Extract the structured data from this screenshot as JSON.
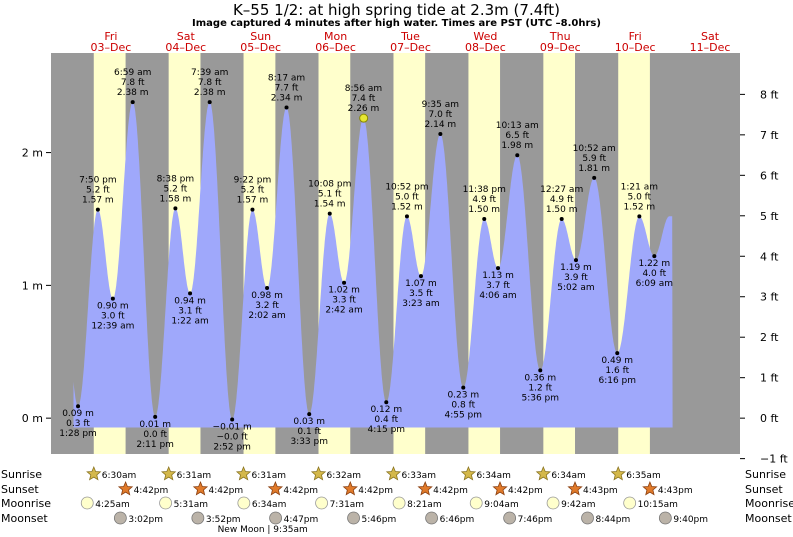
{
  "title": "K–55 1/2: at high  spring tide at 2.3m (7.4ft)",
  "subtitle": "Image captured 4 minutes after high water. Times are PST (UTC –8.0hrs)",
  "colors": {
    "night": "#999999",
    "day": "#ffffcc",
    "tide": "#9fa8fb",
    "date_label": "#cc0000",
    "current_marker": "#e6e632"
  },
  "chart_data": {
    "type": "area",
    "ylabel_left_unit": "m",
    "ylabel_right_unit": "ft",
    "left_ticks": [
      "0 m",
      "1 m",
      "2 m"
    ],
    "right_ticks": [
      "−1 ft",
      "0 ft",
      "1 ft",
      "2 ft",
      "3 ft",
      "4 ft",
      "5 ft",
      "6 ft",
      "7 ft",
      "8 ft"
    ],
    "ylim_m": [
      -0.27,
      2.75
    ],
    "x_range_days": [
      2.7,
      11.9
    ],
    "days": [
      {
        "day": "Fri",
        "date": "03–Dec"
      },
      {
        "day": "Sat",
        "date": "04–Dec"
      },
      {
        "day": "Sun",
        "date": "05–Dec"
      },
      {
        "day": "Mon",
        "date": "06–Dec"
      },
      {
        "day": "Tue",
        "date": "07–Dec"
      },
      {
        "day": "Wed",
        "date": "08–Dec"
      },
      {
        "day": "Thu",
        "date": "09–Dec"
      },
      {
        "day": "Fri",
        "date": "10–Dec"
      },
      {
        "day": "Sat",
        "date": "11–Dec"
      }
    ],
    "tides": [
      {
        "t": 3.061,
        "m": 0.09,
        "time": "1:28 pm",
        "ft": "0.3 ft",
        "mlabel": "0.09 m",
        "type": "low"
      },
      {
        "t": 3.326,
        "m": 1.57,
        "time": "7:50 pm",
        "ft": "5.2 ft",
        "mlabel": "1.57 m",
        "type": "high"
      },
      {
        "t": 3.526,
        "m": 0.9,
        "time": "12:39 am",
        "ft": "3.0 ft",
        "mlabel": "0.90 m",
        "type": "low"
      },
      {
        "t": 3.791,
        "m": 2.38,
        "time": "6:59 am",
        "ft": "7.8 ft",
        "mlabel": "2.38 m",
        "type": "high"
      },
      {
        "t": 4.091,
        "m": 0.01,
        "time": "2:11 pm",
        "ft": "0.0 ft",
        "mlabel": "0.01 m",
        "type": "low"
      },
      {
        "t": 4.361,
        "m": 1.58,
        "time": "8:38 pm",
        "ft": "5.2 ft",
        "mlabel": "1.58 m",
        "type": "high"
      },
      {
        "t": 4.557,
        "m": 0.94,
        "time": "1:22 am",
        "ft": "3.1 ft",
        "mlabel": "0.94 m",
        "type": "low"
      },
      {
        "t": 4.819,
        "m": 2.38,
        "time": "7:39 am",
        "ft": "7.8 ft",
        "mlabel": "2.38 m",
        "type": "high"
      },
      {
        "t": 5.119,
        "m": -0.01,
        "time": "2:52 pm",
        "ft": "−0.0 ft",
        "mlabel": "−0.01 m",
        "type": "low"
      },
      {
        "t": 5.39,
        "m": 1.57,
        "time": "9:22 pm",
        "ft": "5.2 ft",
        "mlabel": "1.57 m",
        "type": "high"
      },
      {
        "t": 5.585,
        "m": 0.98,
        "time": "2:02 am",
        "ft": "3.2 ft",
        "mlabel": "0.98 m",
        "type": "low"
      },
      {
        "t": 5.845,
        "m": 2.34,
        "time": "8:17 am",
        "ft": "7.7 ft",
        "mlabel": "2.34 m",
        "type": "high"
      },
      {
        "t": 6.148,
        "m": 0.03,
        "time": "3:33 pm",
        "ft": "0.1 ft",
        "mlabel": "0.03 m",
        "type": "low"
      },
      {
        "t": 6.422,
        "m": 1.54,
        "time": "10:08 pm",
        "ft": "5.1 ft",
        "mlabel": "1.54 m",
        "type": "high"
      },
      {
        "t": 6.613,
        "m": 1.02,
        "time": "2:42 am",
        "ft": "3.3 ft",
        "mlabel": "1.02 m",
        "type": "low"
      },
      {
        "t": 6.872,
        "m": 2.26,
        "time": "8:56 am",
        "ft": "7.4 ft",
        "mlabel": "2.26 m",
        "type": "high"
      },
      {
        "t": 7.177,
        "m": 0.12,
        "time": "4:15 pm",
        "ft": "0.4 ft",
        "mlabel": "0.12 m",
        "type": "low"
      },
      {
        "t": 7.453,
        "m": 1.52,
        "time": "10:52 pm",
        "ft": "5.0 ft",
        "mlabel": "1.52 m",
        "type": "high"
      },
      {
        "t": 7.64,
        "m": 1.07,
        "time": "3:23 am",
        "ft": "3.5 ft",
        "mlabel": "1.07 m",
        "type": "low"
      },
      {
        "t": 7.899,
        "m": 2.14,
        "time": "9:35 am",
        "ft": "7.0 ft",
        "mlabel": "2.14 m",
        "type": "high"
      },
      {
        "t": 8.205,
        "m": 0.23,
        "time": "4:55 pm",
        "ft": "0.8 ft",
        "mlabel": "0.23 m",
        "type": "low"
      },
      {
        "t": 8.485,
        "m": 1.5,
        "time": "11:38 pm",
        "ft": "4.9 ft",
        "mlabel": "1.50 m",
        "type": "high"
      },
      {
        "t": 8.669,
        "m": 1.13,
        "time": "4:06 am",
        "ft": "3.7 ft",
        "mlabel": "1.13 m",
        "type": "low"
      },
      {
        "t": 8.926,
        "m": 1.98,
        "time": "10:13 am",
        "ft": "6.5 ft",
        "mlabel": "1.98 m",
        "type": "high"
      },
      {
        "t": 9.233,
        "m": 0.36,
        "time": "5:36 pm",
        "ft": "1.2 ft",
        "mlabel": "0.36 m",
        "type": "low"
      },
      {
        "t": 9.519,
        "m": 1.5,
        "time": "12:27 am",
        "ft": "4.9 ft",
        "mlabel": "1.50 m",
        "type": "high"
      },
      {
        "t": 9.71,
        "m": 1.19,
        "time": "5:02 am",
        "ft": "3.9 ft",
        "mlabel": "1.19 m",
        "type": "low"
      },
      {
        "t": 9.953,
        "m": 1.81,
        "time": "10:52 am",
        "ft": "5.9 ft",
        "mlabel": "1.81 m",
        "type": "high"
      },
      {
        "t": 10.261,
        "m": 0.49,
        "time": "6:16 pm",
        "ft": "1.6 ft",
        "mlabel": "0.49 m",
        "type": "low"
      },
      {
        "t": 10.556,
        "m": 1.52,
        "time": "1:21 am",
        "ft": "5.0 ft",
        "mlabel": "1.52 m",
        "type": "high"
      },
      {
        "t": 10.756,
        "m": 1.22,
        "time": "6:09 am",
        "ft": "4.0 ft",
        "mlabel": "1.22 m",
        "type": "low"
      }
    ],
    "sunrise": [
      {
        "t": 3.271,
        "label": "6:30am"
      },
      {
        "t": 4.271,
        "label": "6:31am"
      },
      {
        "t": 5.271,
        "label": "6:31am"
      },
      {
        "t": 6.272,
        "label": "6:32am"
      },
      {
        "t": 7.273,
        "label": "6:33am"
      },
      {
        "t": 8.274,
        "label": "6:34am"
      },
      {
        "t": 9.274,
        "label": "6:34am"
      },
      {
        "t": 10.274,
        "label": "6:35am"
      }
    ],
    "sunset": [
      {
        "t": 3.696,
        "label": "4:42pm"
      },
      {
        "t": 4.696,
        "label": "4:42pm"
      },
      {
        "t": 5.696,
        "label": "4:42pm"
      },
      {
        "t": 6.696,
        "label": "4:42pm"
      },
      {
        "t": 7.696,
        "label": "4:42pm"
      },
      {
        "t": 8.696,
        "label": "4:42pm"
      },
      {
        "t": 9.697,
        "label": "4:43pm"
      },
      {
        "t": 10.697,
        "label": "4:43pm"
      }
    ],
    "moonrise": [
      {
        "t": 3.184,
        "label": "4:25am"
      },
      {
        "t": 4.23,
        "label": "5:31am"
      },
      {
        "t": 5.275,
        "label": "6:34am"
      },
      {
        "t": 6.313,
        "label": "7:31am"
      },
      {
        "t": 7.348,
        "label": "8:21am"
      },
      {
        "t": 8.378,
        "label": "9:04am"
      },
      {
        "t": 9.404,
        "label": "9:42am"
      },
      {
        "t": 10.427,
        "label": "10:15am"
      }
    ],
    "moonset": [
      {
        "t": 3.626,
        "label": "3:02pm"
      },
      {
        "t": 4.661,
        "label": "3:52pm"
      },
      {
        "t": 5.699,
        "label": "4:47pm"
      },
      {
        "t": 6.74,
        "label": "5:46pm"
      },
      {
        "t": 7.782,
        "label": "6:46pm"
      },
      {
        "t": 8.824,
        "label": "7:46pm"
      },
      {
        "t": 9.864,
        "label": "8:44pm"
      },
      {
        "t": 10.903,
        "label": "9:40pm"
      }
    ],
    "new_moon_label": "New Moon | 9:35am",
    "row_labels": {
      "sunrise": "Sunrise",
      "sunset": "Sunset",
      "moonrise": "Moonrise",
      "moonset": "Moonset"
    },
    "current_time_t": 6.875
  }
}
